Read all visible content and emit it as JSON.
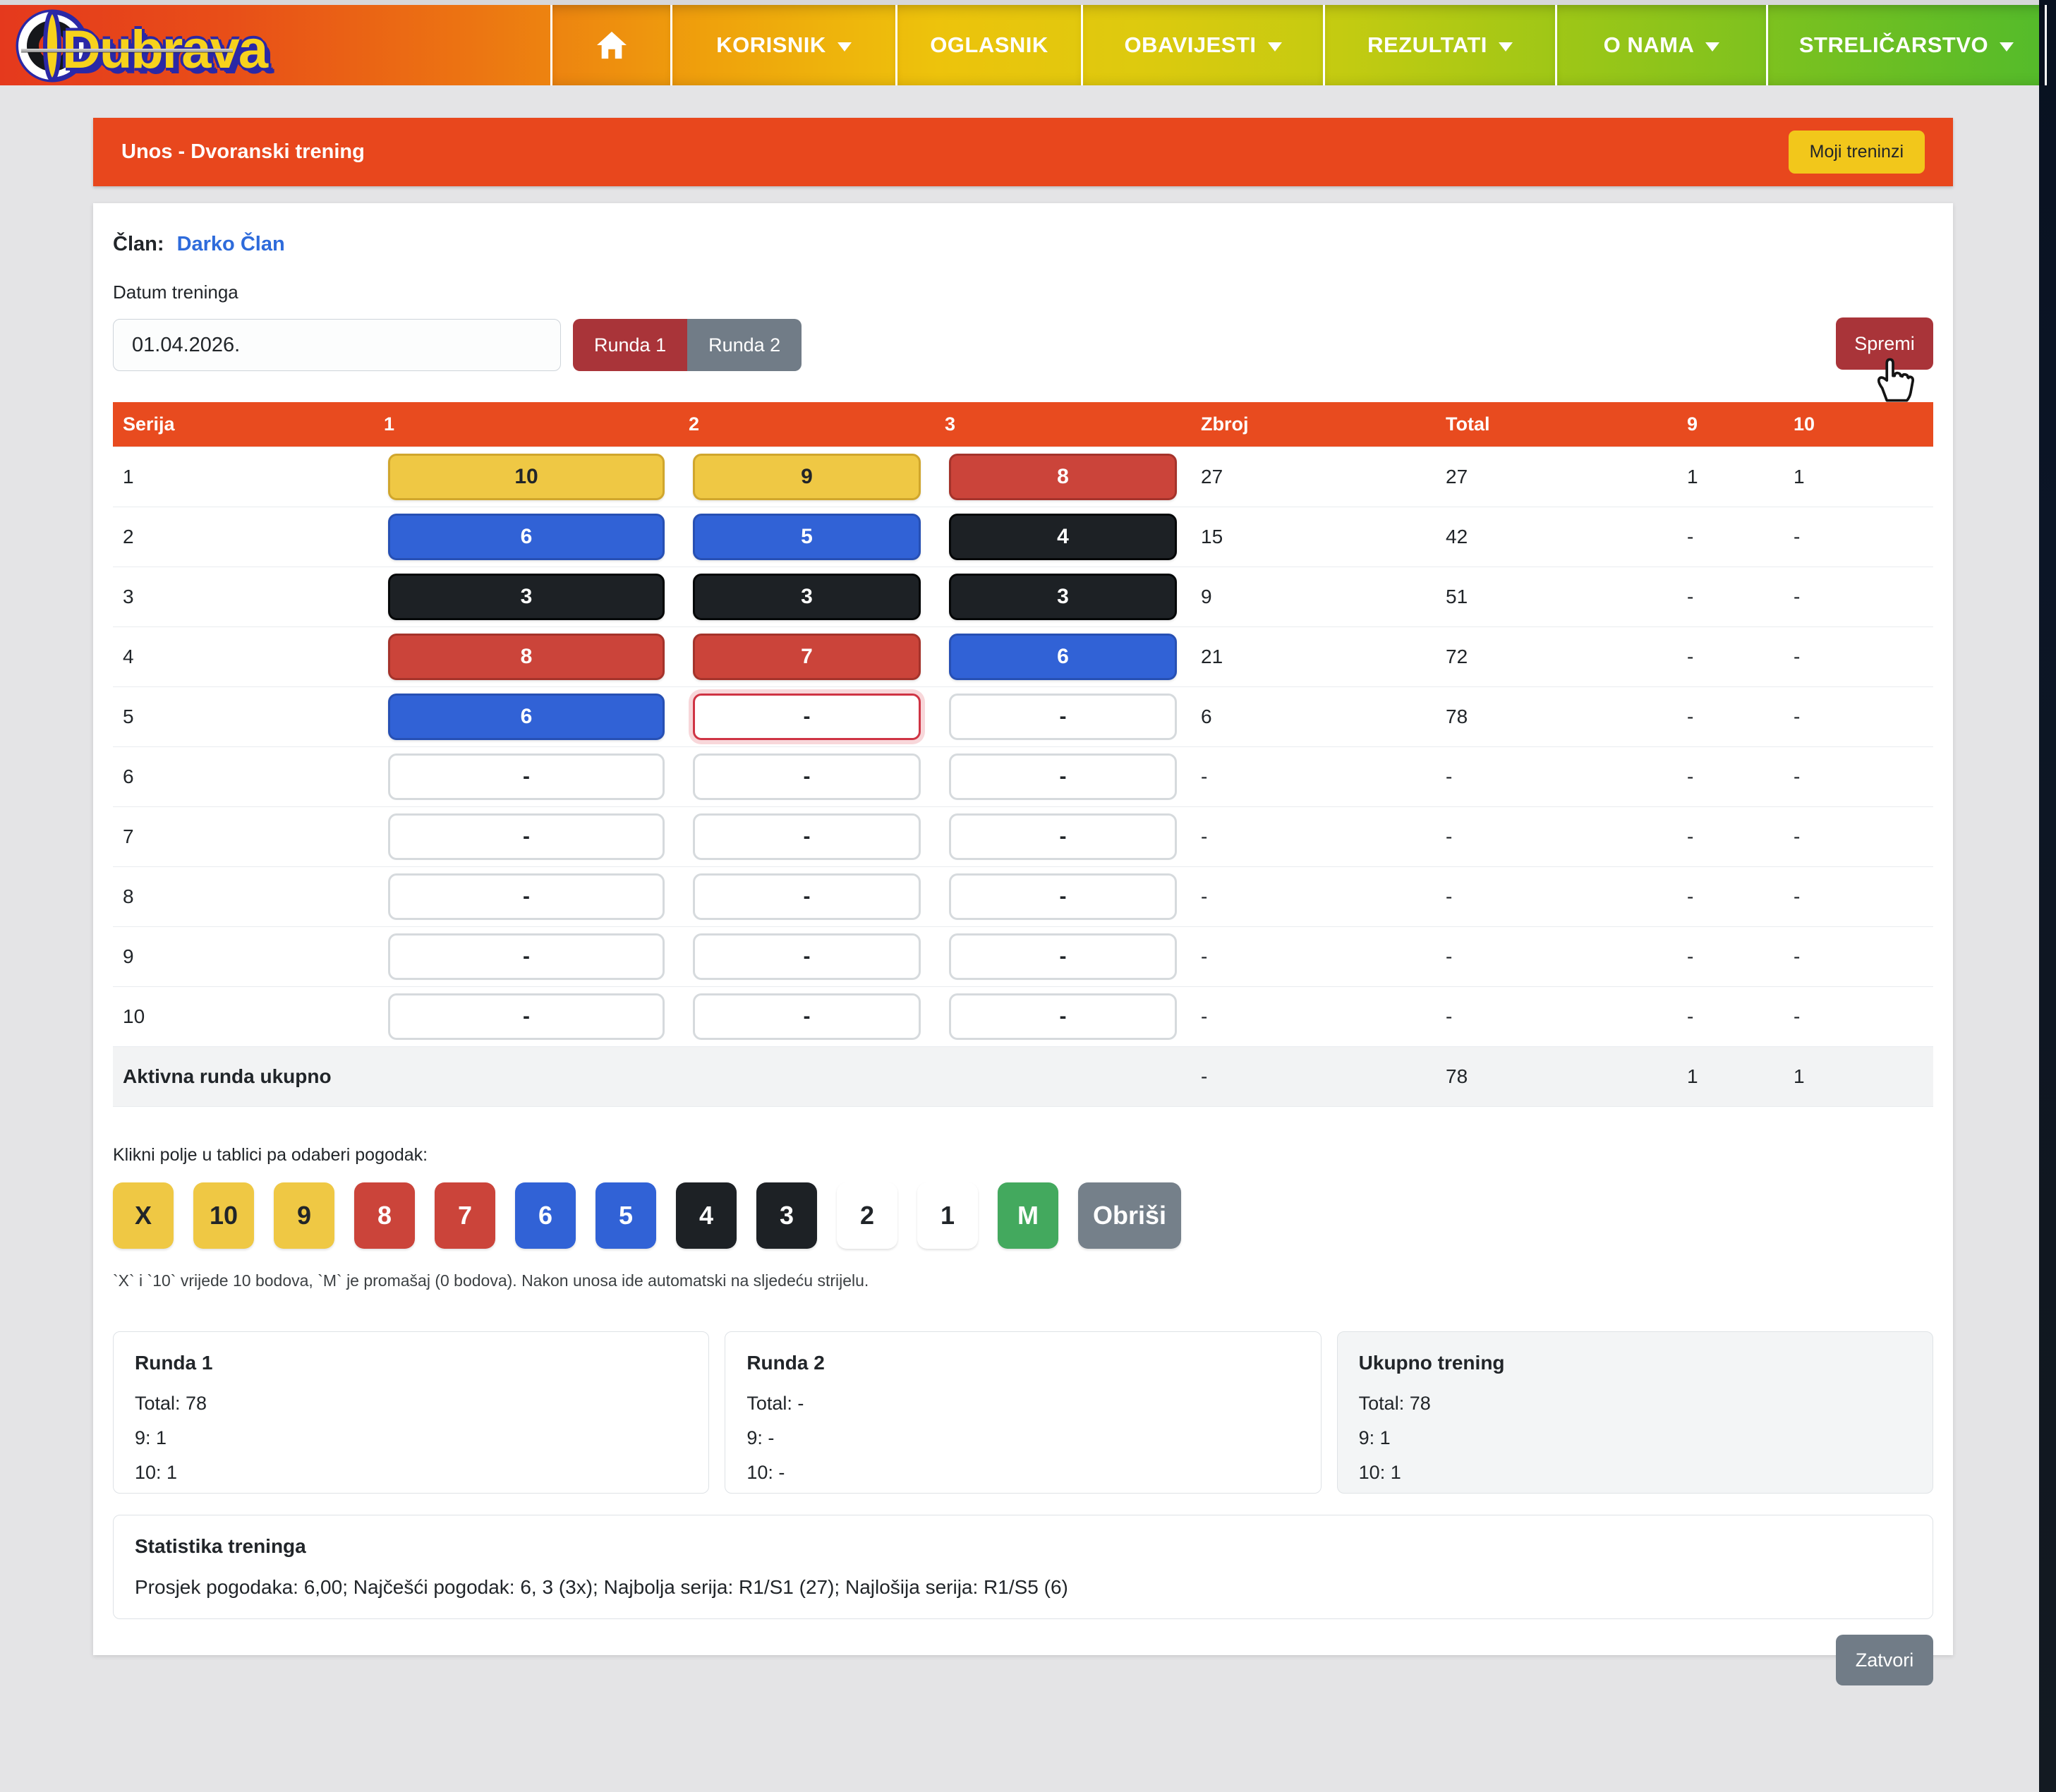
{
  "navbar": {
    "logo_text": "Dubrava",
    "items": [
      {
        "id": "home",
        "label": "",
        "icon": "home-icon",
        "dropdown": false
      },
      {
        "id": "korisnik",
        "label": "KORISNIK",
        "dropdown": true
      },
      {
        "id": "oglasnik",
        "label": "OGLASNIK",
        "dropdown": false
      },
      {
        "id": "obavijesti",
        "label": "OBAVIJESTI",
        "dropdown": true
      },
      {
        "id": "rezultati",
        "label": "REZULTATI",
        "dropdown": true
      },
      {
        "id": "o-nama",
        "label": "O NAMA",
        "dropdown": true
      },
      {
        "id": "strelicarstvo",
        "label": "STRELIČARSTVO",
        "dropdown": true
      }
    ]
  },
  "header": {
    "title": "Unos - Dvoranski trening",
    "action_label": "Moji treninzi"
  },
  "member": {
    "label": "Član:",
    "name": "Darko Član"
  },
  "date": {
    "label": "Datum treninga",
    "value": "01.04.2026."
  },
  "rounds": {
    "round1_label": "Runda 1",
    "round2_label": "Runda 2",
    "save_label": "Spremi"
  },
  "table": {
    "headers": [
      "Serija",
      "1",
      "2",
      "3",
      "Zbroj",
      "Total",
      "9",
      "10"
    ],
    "rows": [
      {
        "serija": "1",
        "shots": [
          {
            "value": "10",
            "color": "yellow"
          },
          {
            "value": "9",
            "color": "yellow"
          },
          {
            "value": "8",
            "color": "red"
          }
        ],
        "zbroj": "27",
        "total": "27",
        "nines": "1",
        "tens": "1"
      },
      {
        "serija": "2",
        "shots": [
          {
            "value": "6",
            "color": "blue"
          },
          {
            "value": "5",
            "color": "blue"
          },
          {
            "value": "4",
            "color": "black"
          }
        ],
        "zbroj": "15",
        "total": "42",
        "nines": "-",
        "tens": "-"
      },
      {
        "serija": "3",
        "shots": [
          {
            "value": "3",
            "color": "black"
          },
          {
            "value": "3",
            "color": "black"
          },
          {
            "value": "3",
            "color": "black"
          }
        ],
        "zbroj": "9",
        "total": "51",
        "nines": "-",
        "tens": "-"
      },
      {
        "serija": "4",
        "shots": [
          {
            "value": "8",
            "color": "red"
          },
          {
            "value": "7",
            "color": "red"
          },
          {
            "value": "6",
            "color": "blue"
          }
        ],
        "zbroj": "21",
        "total": "72",
        "nines": "-",
        "tens": "-"
      },
      {
        "serija": "5",
        "shots": [
          {
            "value": "6",
            "color": "blue"
          },
          {
            "value": "-",
            "color": "active"
          },
          {
            "value": "-",
            "color": "empty"
          }
        ],
        "zbroj": "6",
        "total": "78",
        "nines": "-",
        "tens": "-"
      },
      {
        "serija": "6",
        "shots": [
          {
            "value": "-",
            "color": "empty"
          },
          {
            "value": "-",
            "color": "empty"
          },
          {
            "value": "-",
            "color": "empty"
          }
        ],
        "zbroj": "-",
        "total": "-",
        "nines": "-",
        "tens": "-"
      },
      {
        "serija": "7",
        "shots": [
          {
            "value": "-",
            "color": "empty"
          },
          {
            "value": "-",
            "color": "empty"
          },
          {
            "value": "-",
            "color": "empty"
          }
        ],
        "zbroj": "-",
        "total": "-",
        "nines": "-",
        "tens": "-"
      },
      {
        "serija": "8",
        "shots": [
          {
            "value": "-",
            "color": "empty"
          },
          {
            "value": "-",
            "color": "empty"
          },
          {
            "value": "-",
            "color": "empty"
          }
        ],
        "zbroj": "-",
        "total": "-",
        "nines": "-",
        "tens": "-"
      },
      {
        "serija": "9",
        "shots": [
          {
            "value": "-",
            "color": "empty"
          },
          {
            "value": "-",
            "color": "empty"
          },
          {
            "value": "-",
            "color": "empty"
          }
        ],
        "zbroj": "-",
        "total": "-",
        "nines": "-",
        "tens": "-"
      },
      {
        "serija": "10",
        "shots": [
          {
            "value": "-",
            "color": "empty"
          },
          {
            "value": "-",
            "color": "empty"
          },
          {
            "value": "-",
            "color": "empty"
          }
        ],
        "zbroj": "-",
        "total": "-",
        "nines": "-",
        "tens": "-"
      }
    ],
    "footer": {
      "label": "Aktivna runda ukupno",
      "zbroj": "-",
      "total": "78",
      "nines": "1",
      "tens": "1"
    }
  },
  "picker": {
    "caption": "Klikni polje u tablici pa odaberi pogodak:",
    "buttons": [
      {
        "label": "X",
        "color": "yellow"
      },
      {
        "label": "10",
        "color": "yellow"
      },
      {
        "label": "9",
        "color": "yellow"
      },
      {
        "label": "8",
        "color": "red"
      },
      {
        "label": "7",
        "color": "red"
      },
      {
        "label": "6",
        "color": "blue"
      },
      {
        "label": "5",
        "color": "blue"
      },
      {
        "label": "4",
        "color": "black"
      },
      {
        "label": "3",
        "color": "black"
      },
      {
        "label": "2",
        "color": "white"
      },
      {
        "label": "1",
        "color": "white"
      },
      {
        "label": "M",
        "color": "green"
      },
      {
        "label": "Obriši",
        "color": "gray"
      }
    ],
    "note": "`X` i `10` vrijede 10 bodova, `M` je promašaj (0 bodova). Nakon unosa ide automatski na sljedeću strijelu."
  },
  "summary_cards": [
    {
      "title": "Runda 1",
      "lines": [
        "Total: 78",
        "9: 1",
        "10: 1"
      ],
      "highlight": false
    },
    {
      "title": "Runda 2",
      "lines": [
        "Total: -",
        "9: -",
        "10: -"
      ],
      "highlight": false
    },
    {
      "title": "Ukupno trening",
      "lines": [
        "Total: 78",
        "9: 1",
        "10: 1"
      ],
      "highlight": true
    }
  ],
  "stats": {
    "title": "Statistika treninga",
    "text": "Prosjek pogodaka: 6,00; Najčešći pogodak: 6, 3 (3x); Najbolja serija: R1/S1 (27); Najlošija serija: R1/S5 (6)"
  },
  "close_label": "Zatvori",
  "colors": {
    "nav_gradient_start": "#e5391d",
    "nav_gradient_mid": "#edc30c",
    "nav_gradient_end": "#55bb2a",
    "header_orange": "#e8471d",
    "table_header_orange": "#e84b1f",
    "accent_yellow": "#f2c71b",
    "accent_red": "#a93439",
    "accent_gray": "#717c87",
    "link_blue": "#2e6bdb",
    "pill_yellow": "#efc844",
    "pill_red": "#cb443a",
    "pill_blue": "#3162d6",
    "pill_black": "#1d2125",
    "pill_green": "#43a95e",
    "active_border": "#cf3444"
  }
}
